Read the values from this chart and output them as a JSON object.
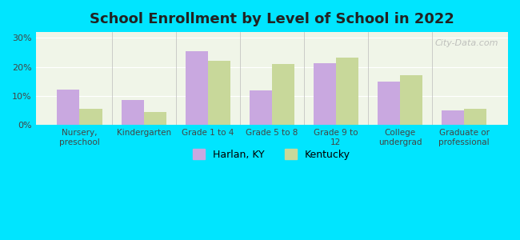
{
  "title": "School Enrollment by Level of School in 2022",
  "categories": [
    "Nursery,\npreschool",
    "Kindergarten",
    "Grade 1 to 4",
    "Grade 5 to 8",
    "Grade 9 to\n12",
    "College\nundergrad",
    "Graduate or\nprofessional"
  ],
  "harlan_values": [
    12.3,
    8.5,
    25.5,
    12.0,
    21.3,
    15.0,
    5.0
  ],
  "kentucky_values": [
    5.7,
    4.5,
    22.0,
    21.0,
    23.3,
    17.2,
    5.5
  ],
  "harlan_color": "#c9a8e0",
  "kentucky_color": "#c8d89a",
  "background_outer": "#00e5ff",
  "background_inner": "#f0f5e8",
  "yticks": [
    0,
    10,
    20,
    30
  ],
  "ylim": [
    0,
    32
  ],
  "bar_width": 0.35,
  "legend_labels": [
    "Harlan, KY",
    "Kentucky"
  ],
  "watermark": "City-Data.com"
}
